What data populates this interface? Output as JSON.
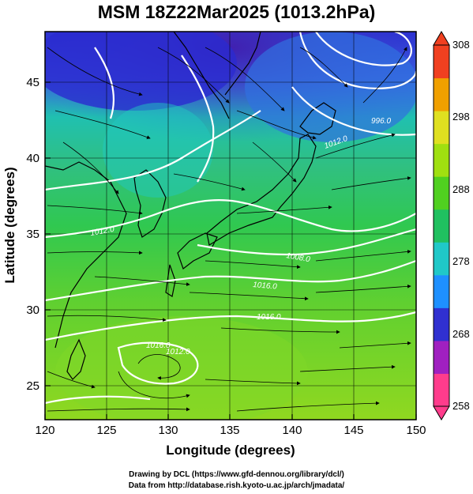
{
  "title": "MSM 18Z22Mar2025 (1013.2hPa)",
  "x_axis": {
    "label": "Longitude (degrees)",
    "ticks": [
      "120",
      "125",
      "130",
      "135",
      "140",
      "145",
      "150"
    ],
    "range": [
      120,
      150
    ]
  },
  "y_axis": {
    "label": "Latitude  (degrees)",
    "ticks": [
      "25",
      "30",
      "35",
      "40",
      "45"
    ],
    "range": [
      22.5,
      48
    ]
  },
  "colorbar": {
    "ticks": [
      "308",
      "298",
      "288",
      "278",
      "268",
      "258"
    ],
    "range": [
      258,
      308
    ],
    "colors": [
      "#ff3c8c",
      "#a020c0",
      "#3030d0",
      "#1e90ff",
      "#20c8c8",
      "#20c060",
      "#50d020",
      "#a0e010",
      "#e0e020",
      "#f0a000",
      "#f04020"
    ]
  },
  "contour_labels": [
    "996.0",
    "1012.0",
    "1012.0",
    "1008.0",
    "1016.0",
    "1016.0",
    "1016.0",
    "1012.0"
  ],
  "credits": {
    "line1": "Drawing by DCL (https://www.gfd-dennou.org/library/dcl/)",
    "line2": "Data from http://database.rish.kyoto-u.ac.jp/arch/jmadata/"
  }
}
